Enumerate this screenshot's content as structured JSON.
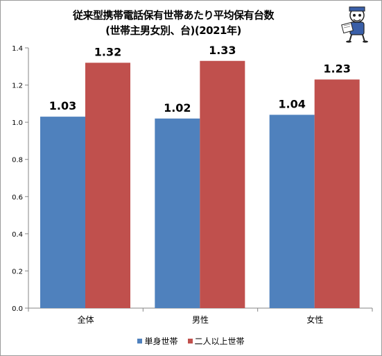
{
  "title_line1": "従来型携帯電話保有世帯あたり平均保有台数",
  "title_line2": "(世帯主男女別、台)(2021年)",
  "mascot_icon": "newspaper-reader-mascot-icon",
  "chart_data": {
    "type": "bar",
    "categories": [
      "全体",
      "男性",
      "女性"
    ],
    "series": [
      {
        "name": "単身世帯",
        "values": [
          1.03,
          1.02,
          1.04
        ],
        "labels": [
          "1.03",
          "1.02",
          "1.04"
        ],
        "color": "#4f81bd"
      },
      {
        "name": "二人以上世帯",
        "values": [
          1.32,
          1.33,
          1.23
        ],
        "labels": [
          "1.32",
          "1.33",
          "1.23"
        ],
        "color": "#c0504d"
      }
    ],
    "ylim": [
      0,
      1.4
    ],
    "yticks": [
      "0.0",
      "0.2",
      "0.4",
      "0.6",
      "0.8",
      "1.0",
      "1.2",
      "1.4"
    ],
    "grid": false,
    "legend_position": "bottom"
  }
}
